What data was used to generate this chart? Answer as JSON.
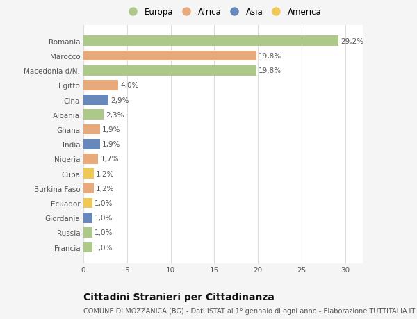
{
  "countries": [
    "Francia",
    "Russia",
    "Giordania",
    "Ecuador",
    "Burkina Faso",
    "Cuba",
    "Nigeria",
    "India",
    "Ghana",
    "Albania",
    "Cina",
    "Egitto",
    "Macedonia d/N.",
    "Marocco",
    "Romania"
  ],
  "values": [
    1.0,
    1.0,
    1.0,
    1.0,
    1.2,
    1.2,
    1.7,
    1.9,
    1.9,
    2.3,
    2.9,
    4.0,
    19.8,
    19.8,
    29.2
  ],
  "continents": [
    "Europa",
    "Europa",
    "Asia",
    "America",
    "Africa",
    "America",
    "Africa",
    "Asia",
    "Africa",
    "Europa",
    "Asia",
    "Africa",
    "Europa",
    "Africa",
    "Europa"
  ],
  "labels": [
    "1,0%",
    "1,0%",
    "1,0%",
    "1,0%",
    "1,2%",
    "1,2%",
    "1,7%",
    "1,9%",
    "1,9%",
    "2,3%",
    "2,9%",
    "4,0%",
    "19,8%",
    "19,8%",
    "29,2%"
  ],
  "continent_colors": {
    "Europa": "#adc98a",
    "Africa": "#e8aa7a",
    "Asia": "#6688bb",
    "America": "#f0c855"
  },
  "legend_order": [
    "Europa",
    "Africa",
    "Asia",
    "America"
  ],
  "legend_colors": [
    "#adc98a",
    "#e8aa7a",
    "#6688bb",
    "#f0c855"
  ],
  "xlim": [
    0,
    32
  ],
  "xticks": [
    0,
    5,
    10,
    15,
    20,
    25,
    30
  ],
  "title": "Cittadini Stranieri per Cittadinanza",
  "subtitle": "COMUNE DI MOZZANICA (BG) - Dati ISTAT al 1° gennaio di ogni anno - Elaborazione TUTTITALIA.IT",
  "bg_color": "#f5f5f5",
  "plot_bg_color": "#ffffff",
  "grid_color": "#dddddd",
  "bar_height": 0.7,
  "label_fontsize": 7.5,
  "title_fontsize": 10,
  "subtitle_fontsize": 7,
  "tick_fontsize": 7.5,
  "legend_fontsize": 8.5
}
